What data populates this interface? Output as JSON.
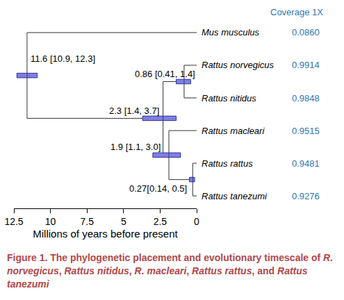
{
  "chart_data": {
    "type": "phylogram",
    "xlabel": "Millions of years before present",
    "xlim": [
      12.5,
      0
    ],
    "xticks": [
      12.5,
      10,
      7.5,
      5,
      2.5,
      0
    ],
    "coverage_header": "Coverage 1X",
    "color": "#7f7fdf",
    "tree": {
      "age": 11.6,
      "ci": [
        10.9,
        12.3
      ],
      "label": "11.6 [10.9, 12.3]",
      "children": [
        {
          "tip": "Mus musculus",
          "age": 0,
          "coverage": {
            "value": 0.086,
            "label": "0.0860"
          }
        },
        {
          "age": 2.3,
          "ci": [
            1.4,
            3.7
          ],
          "label": "2.3 [1.4, 3.7]",
          "children": [
            {
              "age": 0.86,
              "ci": [
                0.41,
                1.4
              ],
              "label": "0.86 [0.41, 1.4]",
              "children": [
                {
                  "tip": "Rattus norvegicus",
                  "age": 0,
                  "coverage": 0.9914
                },
                {
                  "tip": "Rattus nitidus",
                  "age": 0,
                  "coverage": 0.9848
                }
              ]
            },
            {
              "age": 1.9,
              "ci": [
                1.1,
                3.0
              ],
              "label": "1.9 [1.1, 3.0]",
              "children": [
                {
                  "tip": "Rattus macleari",
                  "age": 0,
                  "coverage": 0.9515
                },
                {
                  "age": 0.27,
                  "ci": [
                    0.14,
                    0.5
                  ],
                  "label": "0.27[0.14, 0.5]",
                  "children": [
                    {
                      "tip": "Rattus rattus",
                      "age": 0,
                      "coverage": 0.9481
                    },
                    {
                      "tip": "Rattus tanezumi",
                      "age": 0,
                      "coverage": 0.9276
                    }
                  ]
                }
              ]
            }
          ]
        }
      ]
    },
    "caption": [
      {
        "text": "Figure 1.  The phylogenetic placement and evolutionary timescale of ",
        "italic": false
      },
      {
        "text": "R. norvegicus",
        "italic": true
      },
      {
        "text": ", ",
        "italic": false
      },
      {
        "text": "Rattus nitidus",
        "italic": true
      },
      {
        "text": ", ",
        "italic": false
      },
      {
        "text": "R. macleari",
        "italic": true
      },
      {
        "text": ", ",
        "italic": false
      },
      {
        "text": "Rattus rattus",
        "italic": true
      },
      {
        "text": ", and ",
        "italic": false
      },
      {
        "text": "Rattus tanezumi",
        "italic": true
      }
    ]
  }
}
